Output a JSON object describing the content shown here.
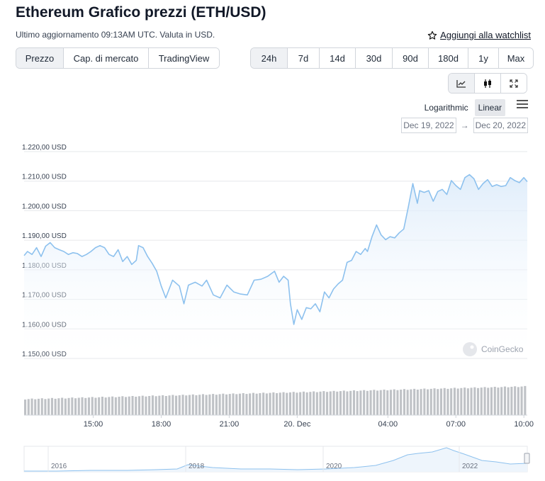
{
  "header": {
    "title": "Ethereum Grafico prezzi (ETH/USD)",
    "subtitle": "Ultimo aggiornamento 09:13AM UTC. Valuta in USD.",
    "watchlist": "Aggiungi alla watchlist"
  },
  "tabs": [
    "Prezzo",
    "Cap. di mercato",
    "TradingView"
  ],
  "ranges": [
    "24h",
    "7d",
    "14d",
    "30d",
    "90d",
    "180d",
    "1y",
    "Max"
  ],
  "chart_type_icons": [
    "line-chart-icon",
    "candlestick-icon",
    "expand-icon"
  ],
  "scale": {
    "log": "Logarithmic",
    "linear": "Linear"
  },
  "dates": {
    "from": "Dec 19, 2022",
    "arrow": "→",
    "to": "Dec 20, 2022"
  },
  "watermark": "CoinGecko",
  "colors": {
    "line": "#8dc1ee",
    "fill_top": "#dcebfa",
    "volume": "#bfc2c6",
    "grid": "#e6e8eb"
  },
  "chart_data": {
    "type": "area",
    "ylabel": "",
    "xlabel": "",
    "y_ticks": [
      "1.220,00 USD",
      "1.210,00 USD",
      "1.200,00 USD",
      "1.190,00 USD",
      "1.180,00 USD",
      "1.170,00 USD",
      "1.160,00 USD",
      "1.150,00 USD"
    ],
    "y_tick_values": [
      1220,
      1210,
      1200,
      1190,
      1180,
      1170,
      1160,
      1150
    ],
    "ylim": [
      1150,
      1220
    ],
    "xlim": [
      11.95,
      34.15
    ],
    "x_ticks": [
      "15:00",
      "18:00",
      "21:00",
      "20. Dec",
      "04:00",
      "07:00",
      "10:00"
    ],
    "x_tick_values": [
      15,
      18,
      21,
      24,
      28,
      31,
      34
    ],
    "grid": true,
    "price_series": {
      "x": [
        11.95,
        12.1,
        12.3,
        12.5,
        12.7,
        12.9,
        13.1,
        13.3,
        13.5,
        13.7,
        13.9,
        14.1,
        14.3,
        14.5,
        14.7,
        14.9,
        15.1,
        15.3,
        15.5,
        15.7,
        15.9,
        16.1,
        16.3,
        16.5,
        16.7,
        16.9,
        17.0,
        17.2,
        17.4,
        17.6,
        17.8,
        18.0,
        18.2,
        18.5,
        18.8,
        19.0,
        19.2,
        19.5,
        19.8,
        20.0,
        20.3,
        20.6,
        20.9,
        21.2,
        21.5,
        21.8,
        22.1,
        22.4,
        22.7,
        23.0,
        23.2,
        23.4,
        23.6,
        23.7,
        23.85,
        24.0,
        24.2,
        24.4,
        24.6,
        24.8,
        25.0,
        25.2,
        25.4,
        25.6,
        25.8,
        26.0,
        26.2,
        26.4,
        26.6,
        26.8,
        27.0,
        27.1,
        27.3,
        27.5,
        27.7,
        27.9,
        28.1,
        28.3,
        28.5,
        28.7,
        28.9,
        29.1,
        29.3,
        29.4,
        29.6,
        29.8,
        30.0,
        30.2,
        30.4,
        30.6,
        30.8,
        31.0,
        31.2,
        31.4,
        31.6,
        31.8,
        32.0,
        32.2,
        32.4,
        32.6,
        32.8,
        33.0,
        33.2,
        33.4,
        33.6,
        33.8,
        34.0,
        34.15
      ],
      "y": [
        1184.8,
        1186.2,
        1185.2,
        1187.5,
        1184.5,
        1188.0,
        1189.2,
        1187.5,
        1186.8,
        1186.2,
        1185.2,
        1185.8,
        1185.5,
        1184.5,
        1185.2,
        1186.2,
        1187.5,
        1188.2,
        1187.5,
        1185.2,
        1184.5,
        1186.8,
        1182.8,
        1184.5,
        1181.8,
        1183.2,
        1188.2,
        1187.5,
        1184.5,
        1182.2,
        1179.5,
        1174.5,
        1170.5,
        1176.5,
        1174.5,
        1168.5,
        1174.8,
        1175.8,
        1174.5,
        1176.5,
        1171.5,
        1170.5,
        1174.8,
        1172.5,
        1171.8,
        1171.5,
        1176.5,
        1176.8,
        1177.8,
        1179.5,
        1175.8,
        1177.8,
        1176.5,
        1168.5,
        1161.5,
        1166.5,
        1163.2,
        1167.2,
        1166.8,
        1168.5,
        1165.8,
        1172.5,
        1170.5,
        1173.5,
        1175.2,
        1176.5,
        1182.5,
        1183.2,
        1186.2,
        1185.2,
        1187.2,
        1186.2,
        1191.2,
        1195.2,
        1191.8,
        1190.2,
        1191.2,
        1190.8,
        1192.5,
        1193.8,
        1201.2,
        1209.2,
        1202.5,
        1206.8,
        1206.2,
        1206.8,
        1203.2,
        1206.5,
        1207.2,
        1205.5,
        1210.2,
        1208.5,
        1207.2,
        1211.2,
        1212.2,
        1210.8,
        1207.2,
        1209.2,
        1210.5,
        1208.2,
        1208.8,
        1208.2,
        1208.5,
        1211.2,
        1210.2,
        1209.5,
        1211.2,
        1209.8
      ]
    },
    "navigator": {
      "x_ticks": [
        "2016",
        "2018",
        "2020",
        "2022"
      ]
    }
  }
}
